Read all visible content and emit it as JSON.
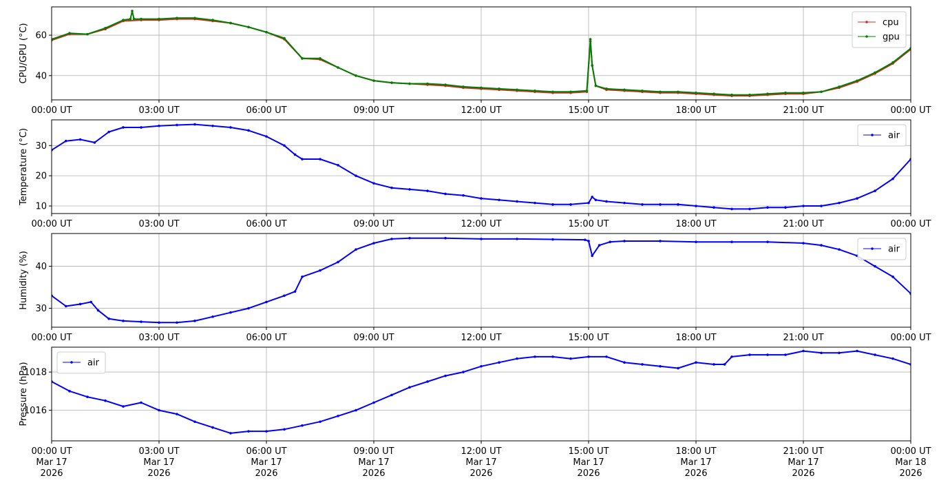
{
  "chart_data": [
    {
      "type": "line",
      "ylabel": "CPU/GPU (°C)",
      "xlim": [
        0,
        24
      ],
      "ylim": [
        28,
        74
      ],
      "yticks": [
        40,
        60
      ],
      "xtick_labels": [
        "00:00 UT",
        "03:00 UT",
        "06:00 UT",
        "09:00 UT",
        "12:00 UT",
        "15:00 UT",
        "18:00 UT",
        "21:00 UT",
        "00:00 UT"
      ],
      "grid": true,
      "legend": "top-right",
      "series": [
        {
          "name": "cpu",
          "color": "#d62728",
          "x": [
            0,
            0.5,
            1,
            1.5,
            2,
            2.5,
            3,
            3.5,
            4,
            4.5,
            5,
            5.5,
            6,
            6.5,
            7,
            7.5,
            8,
            8.5,
            9,
            9.5,
            10,
            10.5,
            11,
            11.5,
            12,
            12.5,
            13,
            13.5,
            14,
            14.5,
            14.95,
            15.05,
            15.1,
            15.2,
            15.5,
            16,
            16.5,
            17,
            17.5,
            18,
            18.5,
            19,
            19.5,
            20,
            20.5,
            21,
            21.5,
            22,
            22.5,
            23,
            23.5,
            24
          ],
          "y": [
            57.5,
            60.5,
            60.5,
            63,
            67,
            67.5,
            67.5,
            68,
            68,
            67,
            66,
            64,
            61.5,
            58,
            48.5,
            48,
            44,
            40,
            37.5,
            36.5,
            36,
            35.5,
            35,
            34,
            33.5,
            33,
            32.5,
            32,
            31.5,
            31.5,
            32,
            57,
            45,
            35,
            33,
            32.5,
            32,
            31.5,
            31.5,
            31,
            30.5,
            30,
            30,
            30.5,
            31,
            31,
            32,
            34,
            37,
            41,
            46,
            53
          ]
        },
        {
          "name": "gpu",
          "color": "#008000",
          "x": [
            0,
            0.5,
            1,
            1.5,
            2,
            2.2,
            2.25,
            2.3,
            2.5,
            3,
            3.5,
            4,
            4.5,
            5,
            5.5,
            6,
            6.5,
            7,
            7.5,
            8,
            8.5,
            9,
            9.5,
            10,
            10.5,
            11,
            11.5,
            12,
            12.5,
            13,
            13.5,
            14,
            14.5,
            14.95,
            15.05,
            15.1,
            15.2,
            15.5,
            16,
            16.5,
            17,
            17.5,
            18,
            18.5,
            19,
            19.5,
            20,
            20.5,
            21,
            21.5,
            22,
            22.5,
            23,
            23.5,
            24
          ],
          "y": [
            58,
            61,
            60.5,
            63.5,
            67.5,
            68,
            72,
            68,
            68,
            68,
            68.5,
            68.5,
            67.5,
            66,
            64,
            61.5,
            58.5,
            48.5,
            48.5,
            44,
            40,
            37.5,
            36.5,
            36,
            36,
            35.5,
            34.5,
            34,
            33.5,
            33,
            32.5,
            32,
            32,
            32.5,
            58,
            45,
            35,
            33.5,
            33,
            32.5,
            32,
            32,
            31.5,
            31,
            30.5,
            30.5,
            31,
            31.5,
            31.5,
            32,
            34.5,
            37.5,
            41.5,
            46.5,
            53.5
          ]
        }
      ]
    },
    {
      "type": "line",
      "ylabel": "Temperature (°C)",
      "xlim": [
        0,
        24
      ],
      "ylim": [
        7.5,
        38.5
      ],
      "yticks": [
        10,
        20,
        30
      ],
      "xtick_labels": [
        "00:00 UT",
        "03:00 UT",
        "06:00 UT",
        "09:00 UT",
        "12:00 UT",
        "15:00 UT",
        "18:00 UT",
        "21:00 UT",
        "00:00 UT"
      ],
      "grid": true,
      "legend": "top-right",
      "series": [
        {
          "name": "air",
          "color": "#0000ff",
          "x": [
            0,
            0.4,
            0.8,
            1.2,
            1.6,
            2,
            2.5,
            3,
            3.5,
            4,
            4.5,
            5,
            5.5,
            6,
            6.5,
            6.8,
            7,
            7.5,
            8,
            8.5,
            9,
            9.5,
            10,
            10.5,
            11,
            11.5,
            12,
            12.5,
            13,
            13.5,
            14,
            14.5,
            15,
            15.1,
            15.2,
            15.5,
            16,
            16.5,
            17,
            17.5,
            18,
            18.5,
            19,
            19.5,
            20,
            20.5,
            21,
            21.5,
            22,
            22.5,
            23,
            23.5,
            24
          ],
          "y": [
            28.5,
            31.5,
            32,
            31,
            34.5,
            36,
            36,
            36.5,
            36.8,
            37,
            36.5,
            36,
            35,
            33,
            30,
            27,
            25.5,
            25.5,
            23.5,
            20,
            17.5,
            16,
            15.5,
            15,
            14,
            13.5,
            12.5,
            12,
            11.5,
            11,
            10.5,
            10.5,
            11,
            13,
            12,
            11.5,
            11,
            10.5,
            10.5,
            10.5,
            10,
            9.5,
            9,
            9,
            9.5,
            9.5,
            10,
            10,
            11,
            12.5,
            15,
            19,
            25.5
          ]
        }
      ]
    },
    {
      "type": "line",
      "ylabel": "Humidity (%)",
      "xlim": [
        0,
        24
      ],
      "ylim": [
        25.5,
        47.8
      ],
      "yticks": [
        30,
        40
      ],
      "xtick_labels": [
        "00:00 UT",
        "03:00 UT",
        "06:00 UT",
        "09:00 UT",
        "12:00 UT",
        "15:00 UT",
        "18:00 UT",
        "21:00 UT",
        "00:00 UT"
      ],
      "grid": true,
      "legend": "top-right",
      "series": [
        {
          "name": "air",
          "color": "#0000ff",
          "x": [
            0,
            0.4,
            0.8,
            1.1,
            1.3,
            1.6,
            2,
            2.5,
            3,
            3.5,
            4,
            4.5,
            5,
            5.5,
            6,
            6.5,
            6.8,
            7,
            7.5,
            8,
            8.5,
            9,
            9.5,
            10,
            11,
            12,
            13,
            14,
            14.9,
            15,
            15.1,
            15.3,
            15.6,
            16,
            17,
            18,
            19,
            20,
            21,
            21.5,
            22,
            22.5,
            23,
            23.5,
            24
          ],
          "y": [
            33,
            30.5,
            31,
            31.5,
            29.5,
            27.5,
            27,
            26.8,
            26.6,
            26.6,
            27,
            28,
            29,
            30,
            31.5,
            33,
            34,
            37.5,
            39,
            41,
            44,
            45.5,
            46.5,
            46.7,
            46.7,
            46.5,
            46.5,
            46.4,
            46.3,
            46,
            42.5,
            45,
            45.8,
            46,
            46,
            45.8,
            45.8,
            45.8,
            45.5,
            45,
            44,
            42.5,
            40,
            37.5,
            33.5
          ]
        }
      ]
    },
    {
      "type": "line",
      "ylabel": "Pressure (hPa)",
      "xlim": [
        0,
        24
      ],
      "ylim": [
        1014.4,
        1019.3
      ],
      "yticks": [
        1016,
        1018
      ],
      "xtick_labels": [
        [
          "00:00 UT",
          "Mar 17",
          "2026"
        ],
        [
          "03:00 UT",
          "Mar 17",
          "2026"
        ],
        [
          "06:00 UT",
          "Mar 17",
          "2026"
        ],
        [
          "09:00 UT",
          "Mar 17",
          "2026"
        ],
        [
          "12:00 UT",
          "Mar 17",
          "2026"
        ],
        [
          "15:00 UT",
          "Mar 17",
          "2026"
        ],
        [
          "18:00 UT",
          "Mar 17",
          "2026"
        ],
        [
          "21:00 UT",
          "Mar 17",
          "2026"
        ],
        [
          "00:00 UT",
          "Mar 18",
          "2026"
        ]
      ],
      "grid": true,
      "legend": "top-left",
      "series": [
        {
          "name": "air",
          "color": "#0000ff",
          "x": [
            0,
            0.5,
            1,
            1.5,
            2,
            2.5,
            3,
            3.5,
            4,
            4.5,
            5,
            5.5,
            6,
            6.5,
            7,
            7.5,
            8,
            8.5,
            9,
            9.5,
            10,
            10.5,
            11,
            11.5,
            12,
            12.5,
            13,
            13.5,
            14,
            14.5,
            15,
            15.5,
            16,
            16.5,
            17,
            17.5,
            18,
            18.5,
            18.8,
            19,
            19.5,
            20,
            20.5,
            21,
            21.5,
            22,
            22.5,
            23,
            23.5,
            24
          ],
          "y": [
            1017.5,
            1017,
            1016.7,
            1016.5,
            1016.2,
            1016.4,
            1016,
            1015.8,
            1015.4,
            1015.1,
            1014.8,
            1014.9,
            1014.9,
            1015,
            1015.2,
            1015.4,
            1015.7,
            1016,
            1016.4,
            1016.8,
            1017.2,
            1017.5,
            1017.8,
            1018,
            1018.3,
            1018.5,
            1018.7,
            1018.8,
            1018.8,
            1018.7,
            1018.8,
            1018.8,
            1018.5,
            1018.4,
            1018.3,
            1018.2,
            1018.5,
            1018.4,
            1018.4,
            1018.8,
            1018.9,
            1018.9,
            1018.9,
            1019.1,
            1019,
            1019,
            1019.1,
            1018.9,
            1018.7,
            1018.4
          ]
        }
      ]
    }
  ]
}
